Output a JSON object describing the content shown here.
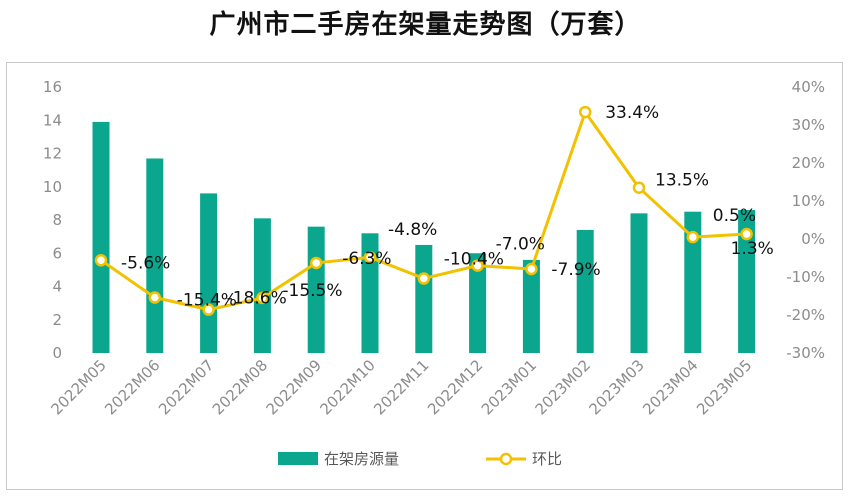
{
  "title": "广州市二手房在架量走势图（万套）",
  "colors": {
    "bar": "#0aa68e",
    "line": "#f2c100",
    "marker_fill": "#ffffff"
  },
  "chart_data": {
    "type": "bar+line",
    "title": "广州市二手房在架量走势图（万套）",
    "categories": [
      "2022M05",
      "2022M06",
      "2022M07",
      "2022M08",
      "2022M09",
      "2022M10",
      "2022M11",
      "2022M12",
      "2023M01",
      "2023M02",
      "2023M03",
      "2023M04",
      "2023M05"
    ],
    "series": [
      {
        "name": "在架房源量",
        "type": "bar",
        "axis": "left",
        "values": [
          13.9,
          11.7,
          9.6,
          8.1,
          7.6,
          7.2,
          6.5,
          6.0,
          5.6,
          7.4,
          8.4,
          8.5,
          8.6
        ]
      },
      {
        "name": "环比",
        "type": "line",
        "axis": "right",
        "values": [
          -5.6,
          -15.4,
          -18.6,
          -15.5,
          -6.3,
          -4.8,
          -10.4,
          -7.0,
          -7.9,
          33.4,
          13.5,
          0.5,
          1.3
        ],
        "labels": [
          "-5.6%",
          "-15.4%",
          "-18.6%",
          "-15.5%",
          "-6.3%",
          "-4.8%",
          "-10.4%",
          "-7.0%",
          "-7.9%",
          "33.4%",
          "13.5%",
          "0.5%",
          "1.3%"
        ]
      }
    ],
    "left_axis": {
      "min": 0,
      "max": 16,
      "ticks": [
        "0",
        "2",
        "4",
        "6",
        "8",
        "10",
        "12",
        "14",
        "16"
      ]
    },
    "right_axis": {
      "min": -30,
      "max": 40,
      "ticks": [
        "-30%",
        "-20%",
        "-10%",
        "0%",
        "10%",
        "20%",
        "30%",
        "40%"
      ]
    },
    "legend": {
      "position": "bottom",
      "items": [
        "在架房源量",
        "环比"
      ]
    },
    "grid": false
  }
}
